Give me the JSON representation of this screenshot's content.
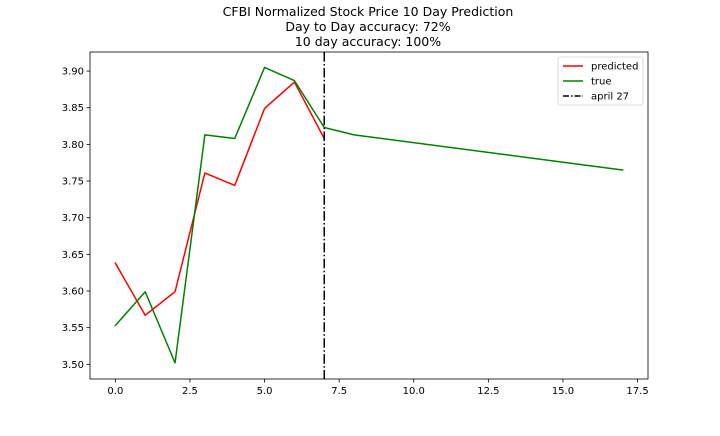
{
  "chart_data": {
    "type": "line",
    "title_lines": [
      "CFBI Normalized Stock Price 10 Day Prediction",
      "Day to Day accuracy: 72%",
      "10 day accuracy: 100%"
    ],
    "xlabel": "",
    "ylabel": "",
    "xlim": [
      -0.85,
      17.85
    ],
    "ylim": [
      3.48,
      3.926
    ],
    "xticks": [
      0.0,
      2.5,
      5.0,
      7.5,
      10.0,
      12.5,
      15.0,
      17.5
    ],
    "xtick_labels": [
      "0.0",
      "2.5",
      "5.0",
      "7.5",
      "10.0",
      "12.5",
      "15.0",
      "17.5"
    ],
    "yticks": [
      3.5,
      3.55,
      3.6,
      3.65,
      3.7,
      3.75,
      3.8,
      3.85,
      3.9
    ],
    "ytick_labels": [
      "3.50",
      "3.55",
      "3.60",
      "3.65",
      "3.70",
      "3.75",
      "3.80",
      "3.85",
      "3.90"
    ],
    "grid": false,
    "legend_position": "top-right",
    "series": [
      {
        "name": "predicted",
        "color": "#ff0000",
        "x": [
          0,
          1,
          2,
          3,
          4,
          5,
          6,
          7
        ],
        "y": [
          3.638,
          3.567,
          3.599,
          3.761,
          3.744,
          3.849,
          3.885,
          3.808
        ]
      },
      {
        "name": "true",
        "color": "#008000",
        "x": [
          0,
          1,
          2,
          3,
          4,
          5,
          6,
          7,
          8,
          17
        ],
        "y": [
          3.553,
          3.599,
          3.502,
          3.813,
          3.808,
          3.905,
          3.887,
          3.823,
          3.813,
          3.765
        ]
      }
    ],
    "vline": {
      "name": "april 27",
      "x": 7,
      "color": "#000000",
      "style": "dash-dot"
    }
  }
}
